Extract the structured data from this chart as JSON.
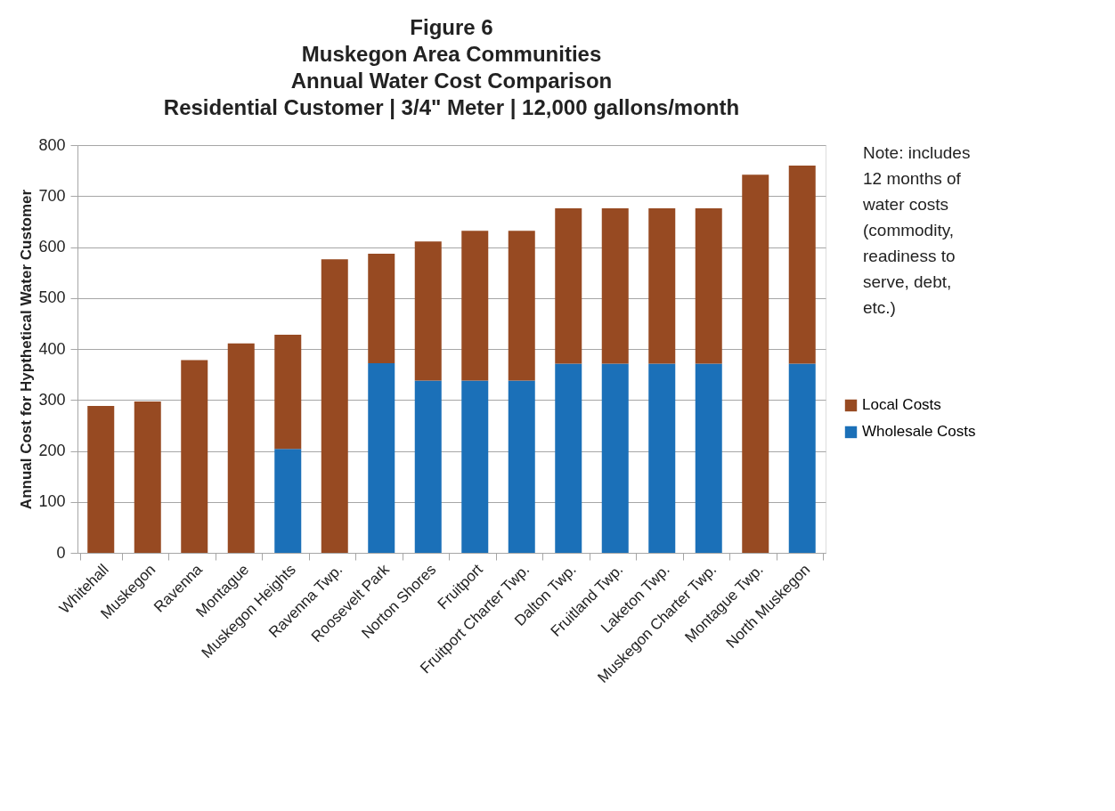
{
  "chart_data": {
    "type": "bar",
    "stacked": true,
    "title": [
      "Figure 6",
      "Muskegon Area Communities",
      "Annual Water Cost Comparison",
      "Residential Customer | 3/4\" Meter | 12,000 gallons/month"
    ],
    "ylabel": "Annual Cost for Hypthetical Water Customer",
    "categories": [
      "Whitehall",
      "Muskegon",
      "Ravenna",
      "Montague",
      "Muskegon Heights",
      "Ravenna Twp.",
      "Roosevelt Park",
      "Norton Shores",
      "Fruitport",
      "Fruitport Charter Twp.",
      "Dalton Twp.",
      "Fruitland Twp.",
      "Laketon Twp.",
      "Muskegon Charter Twp.",
      "Montague Twp.",
      "North Muskegon"
    ],
    "series": [
      {
        "name": "Wholesale Costs",
        "color": "#1b70b8",
        "values": [
          0,
          0,
          0,
          0,
          204,
          0,
          372,
          338,
          338,
          338,
          371,
          371,
          371,
          371,
          0,
          371
        ]
      },
      {
        "name": "Local Costs",
        "color": "#974a22",
        "values": [
          288,
          297,
          378,
          411,
          224,
          576,
          215,
          273,
          294,
          294,
          305,
          305,
          305,
          305,
          742,
          389
        ]
      }
    ],
    "ylim": [
      0,
      800
    ],
    "yticks": [
      0,
      100,
      200,
      300,
      400,
      500,
      600,
      700,
      800
    ],
    "grid": "y",
    "legend": "right",
    "annotations": [
      "Note: includes 12 months of water costs (commodity, readiness to serve, debt, etc.)"
    ]
  }
}
